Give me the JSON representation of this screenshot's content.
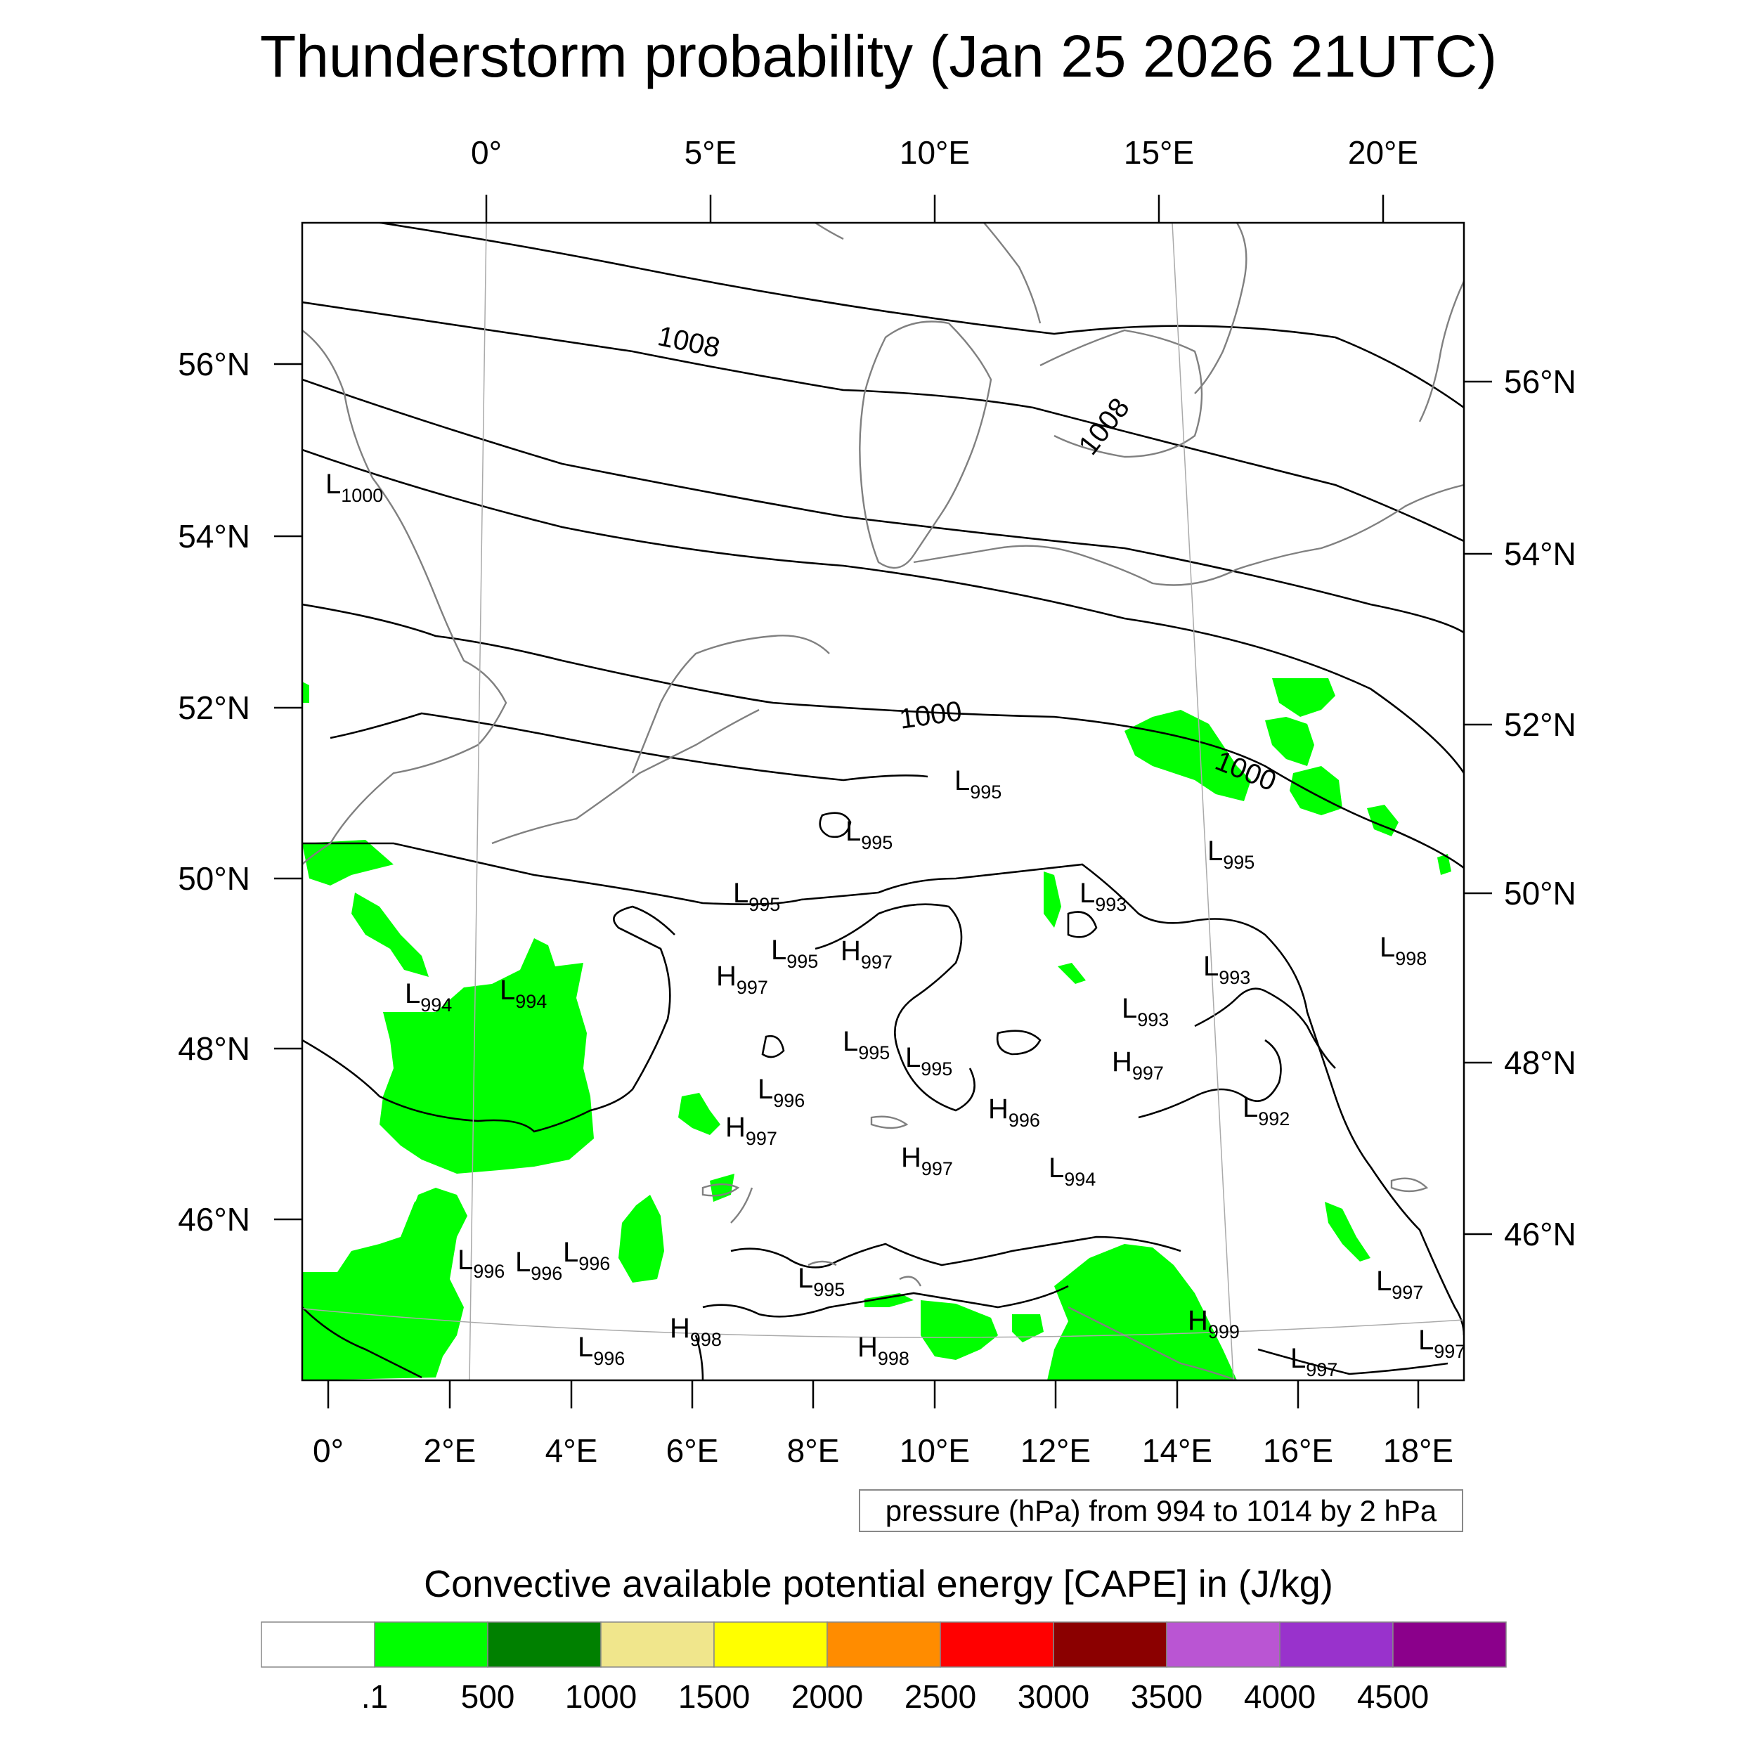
{
  "title": "Thunderstorm probability (Jan 25 2026 21UTC)",
  "contour_note": "pressure (hPa) from 994 to 1014 by 2 hPa",
  "colorbar": {
    "title": "Convective available potential energy [CAPE] in (J/kg)",
    "colors": [
      "#ffffff",
      "#00ff00",
      "#008000",
      "#f0e68c",
      "#ffff00",
      "#ff8c00",
      "#ff0000",
      "#8b0000",
      "#ba55d3",
      "#9932cc",
      "#8b008b"
    ],
    "labels": [
      ".1",
      "500",
      "1000",
      "1500",
      "2000",
      "2500",
      "3000",
      "3500",
      "4000",
      "4500"
    ]
  },
  "axes": {
    "top_lon_labels": [
      "0°",
      "5°E",
      "10°E",
      "15°E",
      "20°E"
    ],
    "bottom_lon_labels": [
      "0°",
      "2°E",
      "4°E",
      "6°E",
      "8°E",
      "10°E",
      "12°E",
      "14°E",
      "16°E",
      "18°E"
    ],
    "left_lat_labels": [
      "56°N",
      "54°N",
      "52°N",
      "50°N",
      "48°N",
      "46°N"
    ],
    "right_lat_labels": [
      "56°N",
      "54°N",
      "52°N",
      "50°N",
      "48°N",
      "46°N"
    ]
  },
  "contour_labels": [
    "1008",
    "1008",
    "1000",
    "1000"
  ],
  "pressure_centers": [
    {
      "type": "L",
      "value": "1000"
    },
    {
      "type": "L",
      "value": "995"
    },
    {
      "type": "L",
      "value": "995"
    },
    {
      "type": "L",
      "value": "995"
    },
    {
      "type": "L",
      "value": "995"
    },
    {
      "type": "H",
      "value": "997"
    },
    {
      "type": "H",
      "value": "997"
    },
    {
      "type": "L",
      "value": "993"
    },
    {
      "type": "L",
      "value": "995"
    },
    {
      "type": "L",
      "value": "993"
    },
    {
      "type": "L",
      "value": "998"
    },
    {
      "type": "L",
      "value": "994"
    },
    {
      "type": "L",
      "value": "994"
    },
    {
      "type": "L",
      "value": "993"
    },
    {
      "type": "L",
      "value": "995"
    },
    {
      "type": "L",
      "value": "995"
    },
    {
      "type": "H",
      "value": "997"
    },
    {
      "type": "L",
      "value": "996"
    },
    {
      "type": "H",
      "value": "996"
    },
    {
      "type": "L",
      "value": "992"
    },
    {
      "type": "H",
      "value": "997"
    },
    {
      "type": "H",
      "value": "997"
    },
    {
      "type": "L",
      "value": "994"
    },
    {
      "type": "L",
      "value": "996"
    },
    {
      "type": "L",
      "value": "996"
    },
    {
      "type": "L",
      "value": "996"
    },
    {
      "type": "L",
      "value": "995"
    },
    {
      "type": "L",
      "value": "997"
    },
    {
      "type": "H",
      "value": "998"
    },
    {
      "type": "H",
      "value": "999"
    },
    {
      "type": "L",
      "value": "996"
    },
    {
      "type": "H",
      "value": "998"
    },
    {
      "type": "L",
      "value": "997"
    },
    {
      "type": "L",
      "value": "997"
    }
  ]
}
